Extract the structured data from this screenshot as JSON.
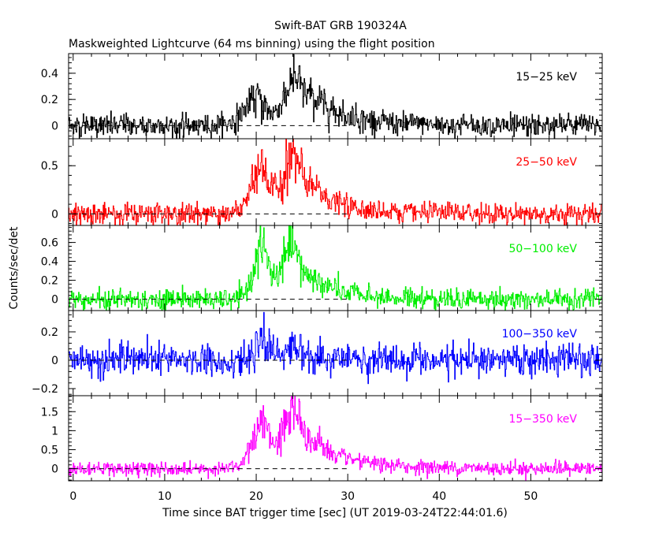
{
  "chart_data": {
    "type": "line",
    "title": "Swift-BAT GRB 190324A",
    "subtitle": "Maskweighted Lightcurve (64 ms binning) using the flight position",
    "xlabel": "Time since BAT trigger time [sec] (UT 2019-03-24T22:44:01.6)",
    "ylabel": "Counts/sec/det",
    "xlim": [
      -0.5,
      57.8
    ],
    "x_ticks": [
      0,
      10,
      20,
      30,
      40,
      50
    ],
    "bin_width_s": 0.064,
    "markers": [
      {
        "x": 17.2,
        "color": "#000000",
        "style": "dashed",
        "panel": "15-350 keV"
      },
      {
        "x": 40.0,
        "color": "#000000",
        "style": "dashed",
        "panel": "15-350 keV"
      },
      {
        "x": 20.9,
        "color": "#00bb00",
        "style": "dashed",
        "panel": "15-350 keV"
      },
      {
        "x": 27.0,
        "color": "#00bb00",
        "style": "dashed",
        "panel": "15-350 keV"
      }
    ],
    "panels": [
      {
        "name": "15−25 keV",
        "color": "#000000",
        "ylim": [
          -0.1,
          0.55
        ],
        "y_ticks": [
          0,
          0.2,
          0.4
        ],
        "y_tick_labels": [
          "0",
          "0.2",
          "0.4"
        ],
        "noise": 0.045,
        "components": [
          {
            "peak": 0.22,
            "t0": 20.3,
            "rise": 1.5,
            "decay": 1.3
          },
          {
            "peak": 0.32,
            "t0": 24.3,
            "rise": 1.2,
            "decay": 2.8
          },
          {
            "peak": 0.05,
            "t0": 27.5,
            "rise": 2.0,
            "decay": 6.0
          }
        ]
      },
      {
        "name": "25−50 keV",
        "color": "#ff0000",
        "ylim": [
          -0.12,
          0.78
        ],
        "y_ticks": [
          0,
          0.5
        ],
        "y_tick_labels": [
          "0",
          "0.5"
        ],
        "noise": 0.055,
        "components": [
          {
            "peak": 0.5,
            "t0": 20.8,
            "rise": 1.2,
            "decay": 0.9
          },
          {
            "peak": 0.58,
            "t0": 24.1,
            "rise": 1.2,
            "decay": 1.8
          },
          {
            "peak": 0.1,
            "t0": 27.0,
            "rise": 1.5,
            "decay": 6.0
          }
        ]
      },
      {
        "name": "50−100 keV",
        "color": "#00ee00",
        "ylim": [
          -0.12,
          0.78
        ],
        "y_ticks": [
          0,
          0.2,
          0.4,
          0.6
        ],
        "y_tick_labels": [
          "0",
          "0.2",
          "0.4",
          "0.6"
        ],
        "noise": 0.055,
        "components": [
          {
            "peak": 0.55,
            "t0": 20.9,
            "rise": 1.1,
            "decay": 0.8
          },
          {
            "peak": 0.52,
            "t0": 24.0,
            "rise": 1.1,
            "decay": 1.7
          },
          {
            "peak": 0.09,
            "t0": 27.0,
            "rise": 1.5,
            "decay": 5.0
          }
        ]
      },
      {
        "name": "100−350 keV",
        "color": "#0000ff",
        "ylim": [
          -0.25,
          0.35
        ],
        "y_ticks": [
          -0.2,
          0,
          0.2
        ],
        "y_tick_labels": [
          "−0.2",
          "0",
          "0.2"
        ],
        "noise": 0.055,
        "components": [
          {
            "peak": 0.14,
            "t0": 20.9,
            "rise": 0.9,
            "decay": 0.8
          },
          {
            "peak": 0.1,
            "t0": 24.2,
            "rise": 1.0,
            "decay": 1.4
          }
        ]
      },
      {
        "name": "15−350 keV",
        "color": "#ff00ff",
        "ylim": [
          -0.32,
          1.92
        ],
        "y_ticks": [
          0,
          0.5,
          1,
          1.5
        ],
        "y_tick_labels": [
          "0",
          "0.5",
          "1",
          "1.5"
        ],
        "noise": 0.09,
        "components": [
          {
            "peak": 1.3,
            "t0": 20.8,
            "rise": 1.2,
            "decay": 0.9
          },
          {
            "peak": 1.45,
            "t0": 24.1,
            "rise": 1.2,
            "decay": 1.8
          },
          {
            "peak": 0.32,
            "t0": 27.2,
            "rise": 1.5,
            "decay": 5.5
          }
        ]
      }
    ]
  }
}
